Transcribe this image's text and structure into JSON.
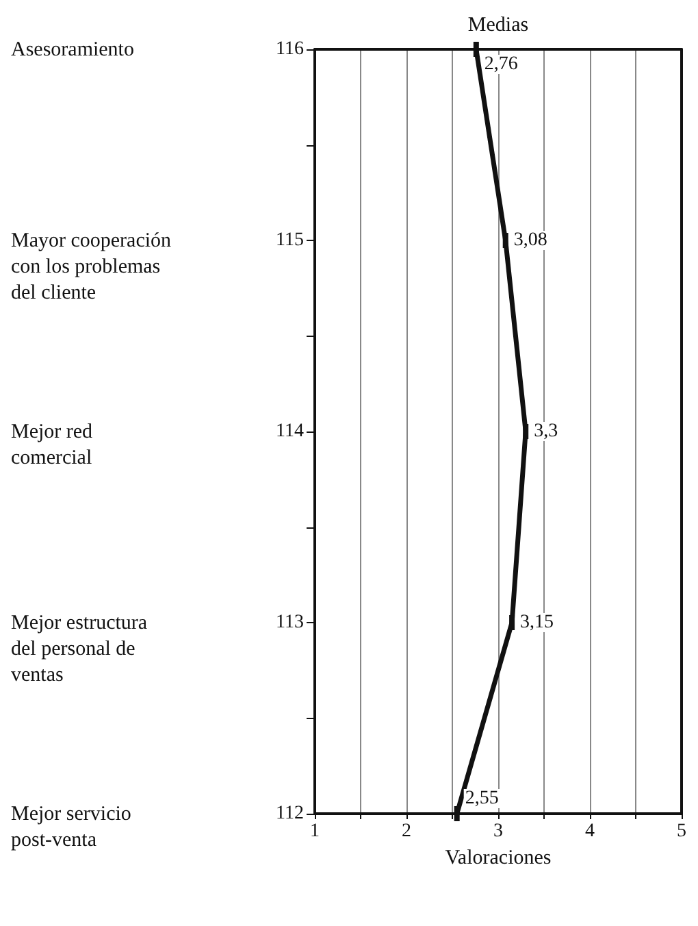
{
  "chart_data": {
    "type": "line",
    "orientation": "horizontal",
    "title": "Medias",
    "xlabel": "Valoraciones",
    "categories": [
      "116",
      "115",
      "114",
      "113",
      "112"
    ],
    "series": [
      {
        "color": "#111111",
        "values": [
          2.76,
          3.08,
          3.3,
          3.15,
          2.55
        ],
        "value_labels": [
          "2,76",
          "3,08",
          "3,3",
          "3,15",
          "2,55"
        ]
      }
    ],
    "xlim": [
      1,
      5
    ],
    "xticks": [
      1,
      {
        "value": 1.5,
        "label": null
      },
      2,
      {
        "value": 2.5,
        "label": null
      },
      3,
      {
        "value": 3.5,
        "label": null
      },
      4,
      {
        "value": 4.5,
        "label": null
      },
      5
    ],
    "grid": "x",
    "marker": "square",
    "line_style": "solid",
    "annotations": [
      "Asesoramiento",
      "Mayor cooperación\ncon los problemas\ndel cliente",
      "Mejor red\ncomercial",
      "Mejor estructura\ndel personal de\nventas",
      "Mejor servicio\npost-venta"
    ]
  }
}
